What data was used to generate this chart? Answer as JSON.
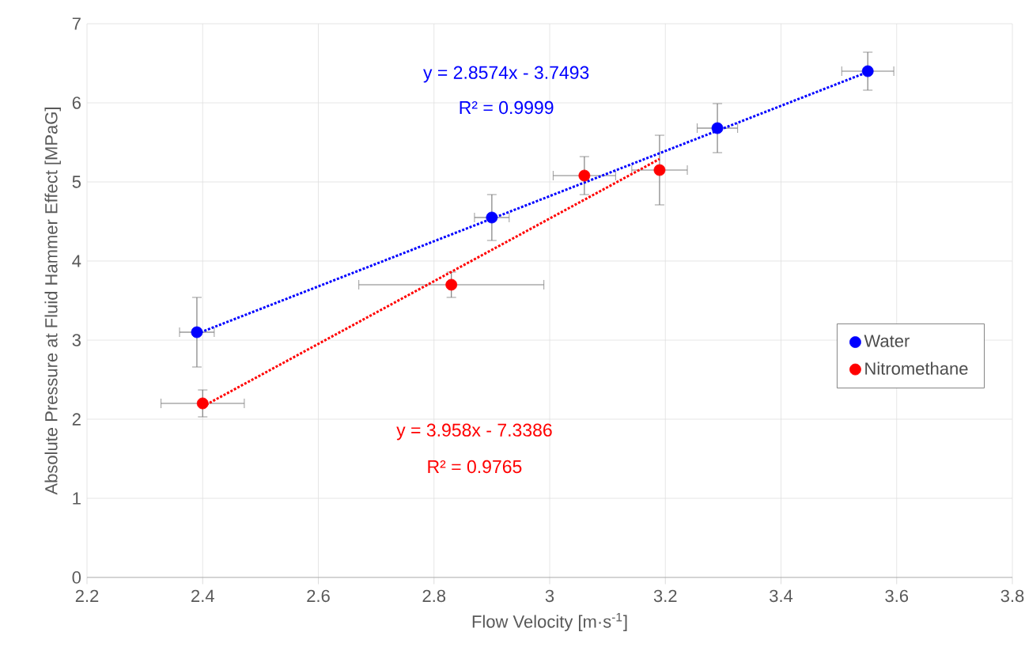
{
  "chart_data": {
    "type": "scatter",
    "xlabel": "Flow Velocity [m·s$^{-1}$]",
    "ylabel": "Absolute Pressure at Fluid Hammer Effect [MPaG]",
    "xlim": [
      2.2,
      3.8
    ],
    "xticks": [
      2.2,
      2.4,
      2.6,
      2.8,
      3,
      3.2,
      3.4,
      3.6,
      3.8
    ],
    "ylim": [
      0,
      7
    ],
    "yticks": [
      0,
      1,
      2,
      3,
      4,
      5,
      6,
      7
    ],
    "grid": true,
    "legend": "right",
    "marker": "circle",
    "series": [
      {
        "name": "Water",
        "color": "#0000ff",
        "x": [
          2.39,
          2.9,
          3.29,
          3.55
        ],
        "values": [
          3.1,
          4.55,
          5.68,
          6.4
        ],
        "errors": [
          0.44,
          0.29,
          0.31,
          0.24
        ],
        "xerrors": [
          0.03,
          0.03,
          0.035,
          0.045
        ]
      },
      {
        "name": "Nitromethane",
        "color": "#ff0000",
        "x": [
          2.4,
          2.83,
          3.06,
          3.19
        ],
        "values": [
          2.2,
          3.7,
          5.08,
          5.15
        ],
        "errors": [
          0.17,
          0.16,
          0.24,
          0.44
        ],
        "xerrors": [
          0.072,
          0.16,
          0.054,
          0.048
        ]
      },
      {
        "type": "line",
        "line_style": "dotted",
        "marker": "none",
        "color": "#0000ff",
        "x": [
          2.39,
          3.55
        ],
        "values": [
          3.08,
          6.39
        ]
      },
      {
        "type": "line",
        "line_style": "dotted",
        "marker": "none",
        "color": "#ff0000",
        "x": [
          2.4,
          3.19
        ],
        "values": [
          2.16,
          5.29
        ]
      }
    ],
    "annotations": [
      "y = 2.8574x - 3.7493",
      "R² = 0.9999",
      "y = 3.958x - 7.3386",
      "R² = 0.9765"
    ]
  }
}
